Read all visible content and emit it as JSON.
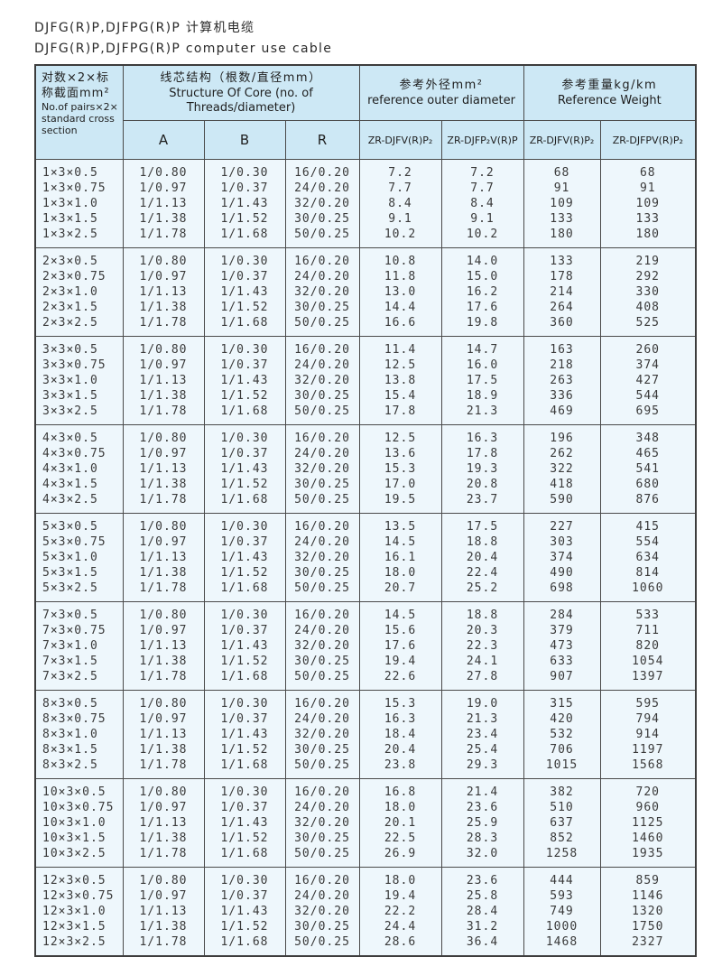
{
  "page": {
    "title_zh": "DJFG(R)P,DJFPG(R)P 计算机电缆",
    "title_en": "DJFG(R)P,DJFPG(R)P computer use cable"
  },
  "table": {
    "header": {
      "col1_zh": "对数×2×标称截面mm²",
      "col1_en": "No.of pairs×2× standard cross section",
      "structure_zh": "线芯结构（根数/直径mm）",
      "structure_en": "Structure Of Core (no. of Threads/diameter)",
      "sub_a": "A",
      "sub_b": "B",
      "sub_r": "R",
      "od_zh": "参考外径mm²",
      "od_en": "reference outer diameter",
      "od_sub1": "ZR-DJFV(R)P₂",
      "od_sub2": "ZR-DJFP₂V(R)P",
      "wt_zh": "参考重量kg/km",
      "wt_en": "Reference Weight",
      "wt_sub1": "ZR-DJFV(R)P₂",
      "wt_sub2": "ZR-DJFPV(R)P₂"
    },
    "groups": [
      {
        "rows": [
          [
            "1×3×0.5",
            "1/0.80",
            "1/0.30",
            "16/0.20",
            "7.2",
            "7.2",
            "68",
            "68"
          ],
          [
            "1×3×0.75",
            "1/0.97",
            "1/0.37",
            "24/0.20",
            "7.7",
            "7.7",
            "91",
            "91"
          ],
          [
            "1×3×1.0",
            "1/1.13",
            "1/1.43",
            "32/0.20",
            "8.4",
            "8.4",
            "109",
            "109"
          ],
          [
            "1×3×1.5",
            "1/1.38",
            "1/1.52",
            "30/0.25",
            "9.1",
            "9.1",
            "133",
            "133"
          ],
          [
            "1×3×2.5",
            "1/1.78",
            "1/1.68",
            "50/0.25",
            "10.2",
            "10.2",
            "180",
            "180"
          ]
        ]
      },
      {
        "rows": [
          [
            "2×3×0.5",
            "1/0.80",
            "1/0.30",
            "16/0.20",
            "10.8",
            "14.0",
            "133",
            "219"
          ],
          [
            "2×3×0.75",
            "1/0.97",
            "1/0.37",
            "24/0.20",
            "11.8",
            "15.0",
            "178",
            "292"
          ],
          [
            "2×3×1.0",
            "1/1.13",
            "1/1.43",
            "32/0.20",
            "13.0",
            "16.2",
            "214",
            "330"
          ],
          [
            "2×3×1.5",
            "1/1.38",
            "1/1.52",
            "30/0.25",
            "14.4",
            "17.6",
            "264",
            "408"
          ],
          [
            "2×3×2.5",
            "1/1.78",
            "1/1.68",
            "50/0.25",
            "16.6",
            "19.8",
            "360",
            "525"
          ]
        ]
      },
      {
        "rows": [
          [
            "3×3×0.5",
            "1/0.80",
            "1/0.30",
            "16/0.20",
            "11.4",
            "14.7",
            "163",
            "260"
          ],
          [
            "3×3×0.75",
            "1/0.97",
            "1/0.37",
            "24/0.20",
            "12.5",
            "16.0",
            "218",
            "374"
          ],
          [
            "3×3×1.0",
            "1/1.13",
            "1/1.43",
            "32/0.20",
            "13.8",
            "17.5",
            "263",
            "427"
          ],
          [
            "3×3×1.5",
            "1/1.38",
            "1/1.52",
            "30/0.25",
            "15.4",
            "18.9",
            "336",
            "544"
          ],
          [
            "3×3×2.5",
            "1/1.78",
            "1/1.68",
            "50/0.25",
            "17.8",
            "21.3",
            "469",
            "695"
          ]
        ]
      },
      {
        "rows": [
          [
            "4×3×0.5",
            "1/0.80",
            "1/0.30",
            "16/0.20",
            "12.5",
            "16.3",
            "196",
            "348"
          ],
          [
            "4×3×0.75",
            "1/0.97",
            "1/0.37",
            "24/0.20",
            "13.6",
            "17.8",
            "262",
            "465"
          ],
          [
            "4×3×1.0",
            "1/1.13",
            "1/1.43",
            "32/0.20",
            "15.3",
            "19.3",
            "322",
            "541"
          ],
          [
            "4×3×1.5",
            "1/1.38",
            "1/1.52",
            "30/0.25",
            "17.0",
            "20.8",
            "418",
            "680"
          ],
          [
            "4×3×2.5",
            "1/1.78",
            "1/1.68",
            "50/0.25",
            "19.5",
            "23.7",
            "590",
            "876"
          ]
        ]
      },
      {
        "rows": [
          [
            "5×3×0.5",
            "1/0.80",
            "1/0.30",
            "16/0.20",
            "13.5",
            "17.5",
            "227",
            "415"
          ],
          [
            "5×3×0.75",
            "1/0.97",
            "1/0.37",
            "24/0.20",
            "14.5",
            "18.8",
            "303",
            "554"
          ],
          [
            "5×3×1.0",
            "1/1.13",
            "1/1.43",
            "32/0.20",
            "16.1",
            "20.4",
            "374",
            "634"
          ],
          [
            "5×3×1.5",
            "1/1.38",
            "1/1.52",
            "30/0.25",
            "18.0",
            "22.4",
            "490",
            "814"
          ],
          [
            "5×3×2.5",
            "1/1.78",
            "1/1.68",
            "50/0.25",
            "20.7",
            "25.2",
            "698",
            "1060"
          ]
        ]
      },
      {
        "rows": [
          [
            "7×3×0.5",
            "1/0.80",
            "1/0.30",
            "16/0.20",
            "14.5",
            "18.8",
            "284",
            "533"
          ],
          [
            "7×3×0.75",
            "1/0.97",
            "1/0.37",
            "24/0.20",
            "15.6",
            "20.3",
            "379",
            "711"
          ],
          [
            "7×3×1.0",
            "1/1.13",
            "1/1.43",
            "32/0.20",
            "17.6",
            "22.3",
            "473",
            "820"
          ],
          [
            "7×3×1.5",
            "1/1.38",
            "1/1.52",
            "30/0.25",
            "19.4",
            "24.1",
            "633",
            "1054"
          ],
          [
            "7×3×2.5",
            "1/1.78",
            "1/1.68",
            "50/0.25",
            "22.6",
            "27.8",
            "907",
            "1397"
          ]
        ]
      },
      {
        "rows": [
          [
            "8×3×0.5",
            "1/0.80",
            "1/0.30",
            "16/0.20",
            "15.3",
            "19.0",
            "315",
            "595"
          ],
          [
            "8×3×0.75",
            "1/0.97",
            "1/0.37",
            "24/0.20",
            "16.3",
            "21.3",
            "420",
            "794"
          ],
          [
            "8×3×1.0",
            "1/1.13",
            "1/1.43",
            "32/0.20",
            "18.4",
            "23.4",
            "532",
            "914"
          ],
          [
            "8×3×1.5",
            "1/1.38",
            "1/1.52",
            "30/0.25",
            "20.4",
            "25.4",
            "706",
            "1197"
          ],
          [
            "8×3×2.5",
            "1/1.78",
            "1/1.68",
            "50/0.25",
            "23.8",
            "29.3",
            "1015",
            "1568"
          ]
        ]
      },
      {
        "rows": [
          [
            "10×3×0.5",
            "1/0.80",
            "1/0.30",
            "16/0.20",
            "16.8",
            "21.4",
            "382",
            "720"
          ],
          [
            "10×3×0.75",
            "1/0.97",
            "1/0.37",
            "24/0.20",
            "18.0",
            "23.6",
            "510",
            "960"
          ],
          [
            "10×3×1.0",
            "1/1.13",
            "1/1.43",
            "32/0.20",
            "20.1",
            "25.9",
            "637",
            "1125"
          ],
          [
            "10×3×1.5",
            "1/1.38",
            "1/1.52",
            "30/0.25",
            "22.5",
            "28.3",
            "852",
            "1460"
          ],
          [
            "10×3×2.5",
            "1/1.78",
            "1/1.68",
            "50/0.25",
            "26.9",
            "32.0",
            "1258",
            "1935"
          ]
        ]
      },
      {
        "rows": [
          [
            "12×3×0.5",
            "1/0.80",
            "1/0.30",
            "16/0.20",
            "18.0",
            "23.6",
            "444",
            "859"
          ],
          [
            "12×3×0.75",
            "1/0.97",
            "1/0.37",
            "24/0.20",
            "19.4",
            "25.8",
            "593",
            "1146"
          ],
          [
            "12×3×1.0",
            "1/1.13",
            "1/1.43",
            "32/0.20",
            "22.2",
            "28.4",
            "749",
            "1320"
          ],
          [
            "12×3×1.5",
            "1/1.38",
            "1/1.52",
            "30/0.25",
            "24.4",
            "31.2",
            "1000",
            "1750"
          ],
          [
            "12×3×2.5",
            "1/1.78",
            "1/1.68",
            "50/0.25",
            "28.6",
            "36.4",
            "1468",
            "2327"
          ]
        ]
      }
    ]
  },
  "colors": {
    "header_bg": "#cde8f5",
    "body_bg": "#eef7fc",
    "border": "#4a4a4a"
  }
}
